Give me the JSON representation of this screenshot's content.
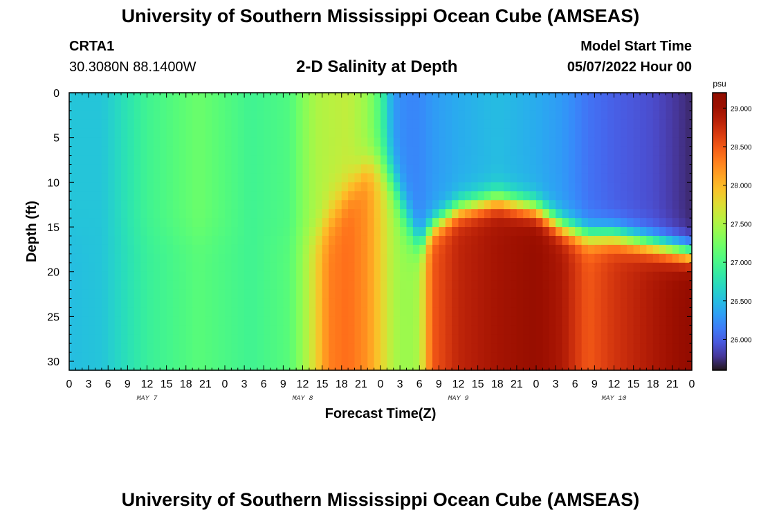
{
  "header": {
    "title": "University of Southern Mississippi Ocean Cube (AMSEAS)",
    "station": "CRTA1",
    "coords": "30.3080N  88.1400W",
    "subtitle": "2-D Salinity at Depth",
    "model_label": "Model Start Time",
    "model_date": "05/07/2022 Hour 00"
  },
  "footer": {
    "title": "University of Southern Mississippi Ocean Cube (AMSEAS)"
  },
  "chart_data": {
    "type": "heatmap",
    "title": "2-D Salinity at Depth",
    "xlabel": "Forecast Time(Z)",
    "ylabel": "Depth (ft)",
    "x_unit": "hours since 05/07/2022 Hour 00",
    "x_range": [
      0,
      96
    ],
    "x_tick_labels": [
      "0",
      "3",
      "6",
      "9",
      "12",
      "15",
      "18",
      "21",
      "0",
      "3",
      "6",
      "9",
      "12",
      "15",
      "18",
      "21",
      "0",
      "3",
      "6",
      "9",
      "12",
      "15",
      "18",
      "21",
      "0",
      "3",
      "6",
      "9",
      "12",
      "15",
      "18",
      "21",
      "0"
    ],
    "day_labels": [
      "MAY 7",
      "MAY 8",
      "MAY 9",
      "MAY 10"
    ],
    "y_range": [
      0,
      31
    ],
    "y_ticks": [
      0,
      5,
      10,
      15,
      20,
      25,
      30
    ],
    "y_reversed": true,
    "colorbar": {
      "unit": "psu",
      "range": [
        25.6,
        29.2
      ],
      "ticks": [
        "26.000",
        "26.500",
        "27.000",
        "27.500",
        "28.000",
        "28.500",
        "29.000"
      ],
      "colormap": "turbo"
    },
    "salinity_keyframes": [
      {
        "hour": 0,
        "surface": 26.55,
        "bottom": 26.5,
        "halocline_depth": 16,
        "halocline_width": 4
      },
      {
        "hour": 5,
        "surface": 26.55,
        "bottom": 26.55,
        "halocline_depth": 16,
        "halocline_width": 4
      },
      {
        "hour": 12,
        "surface": 26.95,
        "bottom": 26.9,
        "halocline_depth": 16,
        "halocline_width": 4
      },
      {
        "hour": 20,
        "surface": 27.2,
        "bottom": 27.1,
        "halocline_depth": 16,
        "halocline_width": 4
      },
      {
        "hour": 28,
        "surface": 26.95,
        "bottom": 26.95,
        "halocline_depth": 16,
        "halocline_width": 4
      },
      {
        "hour": 34,
        "surface": 27.05,
        "bottom": 27.1,
        "halocline_depth": 16,
        "halocline_width": 4
      },
      {
        "hour": 36,
        "surface": 27.3,
        "bottom": 27.4,
        "halocline_depth": 16,
        "halocline_width": 4
      },
      {
        "hour": 38,
        "surface": 27.5,
        "bottom": 27.8,
        "halocline_depth": 16,
        "halocline_width": 4
      },
      {
        "hour": 40,
        "surface": 27.55,
        "bottom": 28.3,
        "halocline_depth": 14,
        "halocline_width": 6
      },
      {
        "hour": 43,
        "surface": 27.6,
        "bottom": 28.4,
        "halocline_depth": 11,
        "halocline_width": 5
      },
      {
        "hour": 46,
        "surface": 27.4,
        "bottom": 28.2,
        "halocline_depth": 8,
        "halocline_width": 4
      },
      {
        "hour": 48,
        "surface": 27.0,
        "bottom": 27.85,
        "halocline_depth": 8,
        "halocline_width": 5
      },
      {
        "hour": 50,
        "surface": 26.3,
        "bottom": 27.5,
        "halocline_depth": 10,
        "halocline_width": 6
      },
      {
        "hour": 52,
        "surface": 26.2,
        "bottom": 27.4,
        "halocline_depth": 14,
        "halocline_width": 6
      },
      {
        "hour": 54,
        "surface": 26.2,
        "bottom": 27.5,
        "halocline_depth": 17,
        "halocline_width": 4
      },
      {
        "hour": 56,
        "surface": 26.3,
        "bottom": 28.5,
        "halocline_depth": 15,
        "halocline_width": 3
      },
      {
        "hour": 60,
        "surface": 26.4,
        "bottom": 28.8,
        "halocline_depth": 13,
        "halocline_width": 3
      },
      {
        "hour": 66,
        "surface": 26.5,
        "bottom": 28.95,
        "halocline_depth": 12,
        "halocline_width": 3
      },
      {
        "hour": 72,
        "surface": 26.4,
        "bottom": 29.05,
        "halocline_depth": 13,
        "halocline_width": 3
      },
      {
        "hour": 76,
        "surface": 26.3,
        "bottom": 28.9,
        "halocline_depth": 15,
        "halocline_width": 3
      },
      {
        "hour": 80,
        "surface": 26.1,
        "bottom": 28.5,
        "halocline_depth": 16,
        "halocline_width": 3
      },
      {
        "hour": 84,
        "surface": 26.0,
        "bottom": 28.7,
        "halocline_depth": 16,
        "halocline_width": 3
      },
      {
        "hour": 90,
        "surface": 25.9,
        "bottom": 28.9,
        "halocline_depth": 17,
        "halocline_width": 3
      },
      {
        "hour": 96,
        "surface": 25.7,
        "bottom": 29.1,
        "halocline_depth": 18,
        "halocline_width": 3
      }
    ]
  }
}
